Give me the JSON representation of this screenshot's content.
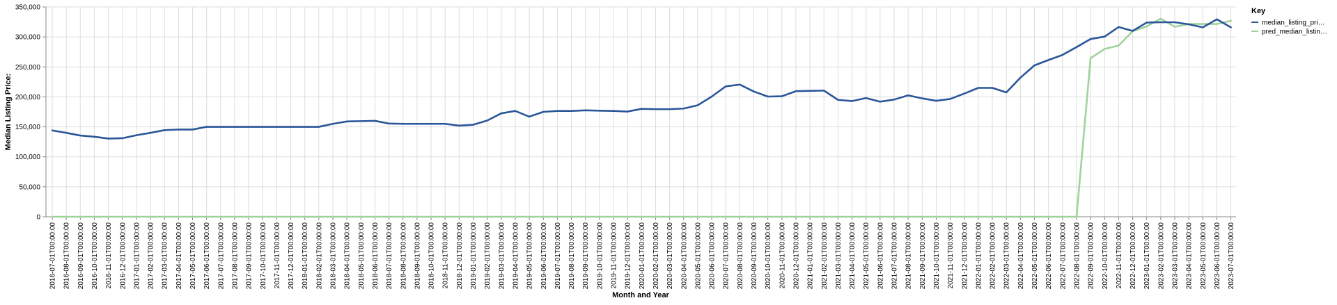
{
  "chart_data": {
    "type": "line",
    "xlabel": "Month and Year",
    "ylabel": "Median Listing Price:",
    "ylim": [
      0,
      350000
    ],
    "y_ticks": [
      0,
      50000,
      100000,
      150000,
      200000,
      250000,
      300000,
      350000
    ],
    "y_tick_labels": [
      "0",
      "50,000",
      "100,000",
      "150,000",
      "200,000",
      "250,000",
      "300,000",
      "350,000"
    ],
    "grid": true,
    "legend": {
      "title": "Key",
      "position": "top-right",
      "entries": [
        "median_listing_pri…",
        "pred_median_listin…"
      ]
    },
    "x": [
      "2016-07-01T00:00:00",
      "2016-08-01T00:00:00",
      "2016-09-01T00:00:00",
      "2016-10-01T00:00:00",
      "2016-11-01T00:00:00",
      "2016-12-01T00:00:00",
      "2017-01-01T00:00:00",
      "2017-02-01T00:00:00",
      "2017-03-01T00:00:00",
      "2017-04-01T00:00:00",
      "2017-05-01T00:00:00",
      "2017-06-01T00:00:00",
      "2017-07-01T00:00:00",
      "2017-08-01T00:00:00",
      "2017-09-01T00:00:00",
      "2017-10-01T00:00:00",
      "2017-11-01T00:00:00",
      "2017-12-01T00:00:00",
      "2018-01-01T00:00:00",
      "2018-02-01T00:00:00",
      "2018-03-01T00:00:00",
      "2018-04-01T00:00:00",
      "2018-05-01T00:00:00",
      "2018-06-01T00:00:00",
      "2018-07-01T00:00:00",
      "2018-08-01T00:00:00",
      "2018-09-01T00:00:00",
      "2018-10-01T00:00:00",
      "2018-11-01T00:00:00",
      "2018-12-01T00:00:00",
      "2019-01-01T00:00:00",
      "2019-02-01T00:00:00",
      "2019-03-01T00:00:00",
      "2019-04-01T00:00:00",
      "2019-05-01T00:00:00",
      "2019-06-01T00:00:00",
      "2019-07-01T00:00:00",
      "2019-08-01T00:00:00",
      "2019-09-01T00:00:00",
      "2019-10-01T00:00:00",
      "2019-11-01T00:00:00",
      "2019-12-01T00:00:00",
      "2020-01-01T00:00:00",
      "2020-02-01T00:00:00",
      "2020-03-01T00:00:00",
      "2020-04-01T00:00:00",
      "2020-05-01T00:00:00",
      "2020-06-01T00:00:00",
      "2020-07-01T00:00:00",
      "2020-08-01T00:00:00",
      "2020-09-01T00:00:00",
      "2020-10-01T00:00:00",
      "2020-11-01T00:00:00",
      "2020-12-01T00:00:00",
      "2021-01-01T00:00:00",
      "2021-02-01T00:00:00",
      "2021-03-01T00:00:00",
      "2021-04-01T00:00:00",
      "2021-05-01T00:00:00",
      "2021-06-01T00:00:00",
      "2021-07-01T00:00:00",
      "2021-08-01T00:00:00",
      "2021-09-01T00:00:00",
      "2021-10-01T00:00:00",
      "2021-11-01T00:00:00",
      "2021-12-01T00:00:00",
      "2022-01-01T00:00:00",
      "2022-02-01T00:00:00",
      "2022-03-01T00:00:00",
      "2022-04-01T00:00:00",
      "2022-05-01T00:00:00",
      "2022-06-01T00:00:00",
      "2022-07-01T00:00:00",
      "2022-08-01T00:00:00",
      "2022-09-01T00:00:00",
      "2022-10-01T00:00:00",
      "2022-11-01T00:00:00",
      "2022-12-01T00:00:00",
      "2023-01-01T00:00:00",
      "2023-02-01T00:00:00",
      "2023-03-01T00:00:00",
      "2023-04-01T00:00:00",
      "2023-05-01T00:00:00",
      "2023-06-01T00:00:00",
      "2023-07-01T00:00:00"
    ],
    "x_tick_labels": [
      "2016-07-01T00:00:00",
      "2016-08-01T00:00:00",
      "2016-09-01T00:00:00",
      "2016-10-01T00:00:00",
      "2016-11-01T00:00:00",
      "2016-12-01T00:00:00",
      "2017-01-01T00:00:00",
      "2017-02-01T00:00:00",
      "2017-03-01T00:00:00",
      "2017-04-01T00:00:00",
      "2017-05-01T00:00:00",
      "2017-06-01T00:00:00",
      "2017-07-01T00:00:00",
      "2017-08-01T00:00:00",
      "2017-09-01T00:00:00",
      "2017-10-01T00:00:00",
      "2017-11-01T00:00:00",
      "2017-12-01T00:00:00",
      "2018-01-01T00:00:00",
      "2018-02-01T00:00:00",
      "2018-03-01T00:00:00",
      "2018-04-01T00:00:00",
      "2018-05-01T00:00:00",
      "2018-06-01T00:00:00",
      "2018-07-01T00:00:00",
      "2018-08-01T00:00:00",
      "2018-09-01T00:00:00",
      "2018-10-01T00:00:00",
      "2018-11-01T00:00:00",
      "2018-12-01T00:00:00",
      "2019-01-01T00:00:00",
      "2019-02-01T00:00:00",
      "2019-03-01T00:00:00",
      "2019-04-01T00:00:00",
      "2019-05-01T00:00:00",
      "2019-06-01T00:00:00",
      "2019-07-01T00:00:00",
      "2019-08-01T00:00:00",
      "2019-09-01T00:00:00",
      "2019-10-01T00:00:00",
      "2019-11-01T00:00:00",
      "2019-12-01T00:00:00",
      "2020-01-01T00:00:00",
      "2020-02-01T00:00:00",
      "2020-03-01T00:00:00",
      "2020-04-01T00:00:00",
      "2020-05-01T00:00:00",
      "2020-06-01T00:00:00",
      "2020-07-01T00:00:00",
      "2020-08-01T00:00:00",
      "2020-09-01T00:00:00",
      "2020-10-01T00:00:00",
      "2020-11-01T00:00:00",
      "2020-12-01T00:00:00",
      "2021-01-01T00:00:00",
      "2021-02-01T00:00:00",
      "2021-03-01T00:00:00",
      "2021-04-01T00:00:00",
      "2021-05-01T00:00:00",
      "2021-06-01T00:00:00",
      "2021-07-01T00:00:00",
      "2021-08-01T00:00:00",
      "2021-09-01T00:00:00",
      "2021-10-01T00:00:00",
      "2021-11-01T00:00:00",
      "2021-12-01T00:00:00",
      "2022-01-01T00:00:00",
      "2022-02-01T00:00:00",
      "2022-03-01T00:00:00",
      "2022-04-01T00:00:00",
      "2022-05-01T00:00:00",
      "2022-06-01T00:00:00",
      "2022-07-01T00:00:00",
      "2022-08-01T00:00:00",
      "2022-09-01T00:00:00",
      "2022-10-01T00:00:00",
      "2022-11-01T00:00:00",
      "2022-12-01T00:00:00",
      "2023-01-01T00:00:00",
      "2023-02-01T00:00:00",
      "2023-03-01T00:00:00",
      "2023-04-01T00:00:00",
      "2023-05-01T00:00:00",
      "2023-06-01T00:00:00",
      "2023-07-01T00:00:00"
    ],
    "series": [
      {
        "name": "median_listing_pri…",
        "color": "#2a5699",
        "values": [
          144000,
          140000,
          135500,
          133500,
          130500,
          131000,
          136000,
          140000,
          144500,
          145500,
          145500,
          150000,
          150000,
          150000,
          150000,
          150000,
          150000,
          150000,
          150000,
          150000,
          155000,
          159000,
          159500,
          160000,
          155500,
          155000,
          155000,
          155000,
          155000,
          152000,
          153500,
          160500,
          172500,
          176500,
          167000,
          175000,
          176500,
          176500,
          177500,
          177000,
          176500,
          175500,
          180000,
          179500,
          179500,
          180500,
          186000,
          200500,
          217500,
          220500,
          209000,
          200500,
          201000,
          209500,
          210000,
          210500,
          195000,
          193000,
          198000,
          192000,
          195500,
          202500,
          197500,
          193500,
          196500,
          205500,
          215000,
          215000,
          207500,
          232000,
          252500,
          261500,
          270000,
          283000,
          296500,
          300500,
          316500,
          310000,
          324000,
          324500,
          324500,
          321000,
          316000,
          329500,
          316000
        ]
      },
      {
        "name": "pred_median_listin…",
        "color": "#9fd39a",
        "values": [
          0,
          0,
          0,
          0,
          0,
          0,
          0,
          0,
          0,
          0,
          0,
          0,
          0,
          0,
          0,
          0,
          0,
          0,
          0,
          0,
          0,
          0,
          0,
          0,
          0,
          0,
          0,
          0,
          0,
          0,
          0,
          0,
          0,
          0,
          0,
          0,
          0,
          0,
          0,
          0,
          0,
          0,
          0,
          0,
          0,
          0,
          0,
          0,
          0,
          0,
          0,
          0,
          0,
          0,
          0,
          0,
          0,
          0,
          0,
          0,
          0,
          0,
          0,
          0,
          0,
          0,
          0,
          0,
          0,
          0,
          0,
          0,
          0,
          0,
          264500,
          280000,
          285500,
          309500,
          317500,
          330500,
          317000,
          321500,
          321500,
          321500,
          327000
        ]
      }
    ]
  }
}
